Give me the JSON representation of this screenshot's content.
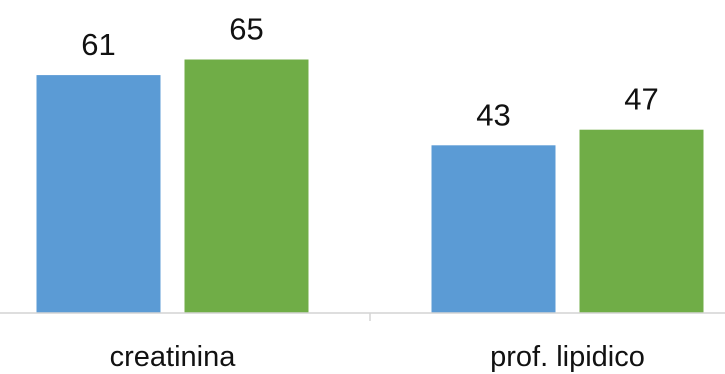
{
  "chart_data": {
    "type": "bar",
    "categories": [
      "creatinina",
      "prof. lipidico"
    ],
    "series": [
      {
        "values": [
          61,
          43
        ],
        "color": "#5b9bd5"
      },
      {
        "values": [
          65,
          47
        ],
        "color": "#70ad47"
      }
    ],
    "title": "",
    "xlabel": "",
    "ylabel": "",
    "ylim": [
      0,
      70
    ],
    "data_labels": true,
    "grid": false,
    "legend": "none"
  }
}
